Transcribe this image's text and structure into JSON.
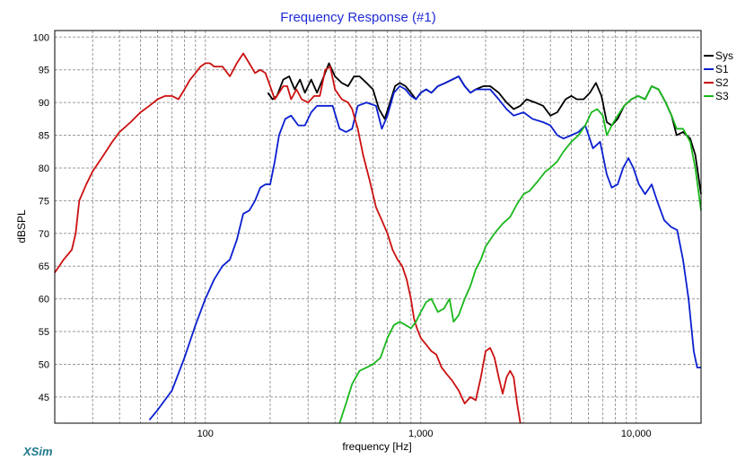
{
  "chart_data": {
    "type": "line",
    "title": "Frequency Response (#1)",
    "xlabel": "frequency [Hz]",
    "ylabel": "dBSPL",
    "xscale": "log",
    "xlim": [
      20,
      20000
    ],
    "ylim": [
      41,
      101
    ],
    "yticks": [
      45,
      50,
      55,
      60,
      65,
      70,
      75,
      80,
      85,
      90,
      95,
      100
    ],
    "xtick_labels": [
      {
        "value": 100,
        "label": "100"
      },
      {
        "value": 1000,
        "label": "1,000"
      },
      {
        "value": 10000,
        "label": "10,000"
      }
    ],
    "grid": true,
    "legend_position": "right",
    "series": [
      {
        "name": "Sys",
        "color": "#000000",
        "points": [
          [
            195,
            91.5
          ],
          [
            205,
            90.5
          ],
          [
            215,
            91
          ],
          [
            230,
            93.5
          ],
          [
            245,
            94
          ],
          [
            260,
            92
          ],
          [
            275,
            93.5
          ],
          [
            290,
            91.5
          ],
          [
            310,
            93.5
          ],
          [
            330,
            91.5
          ],
          [
            350,
            93.5
          ],
          [
            375,
            96
          ],
          [
            400,
            94
          ],
          [
            430,
            93
          ],
          [
            460,
            92.5
          ],
          [
            490,
            94
          ],
          [
            520,
            94
          ],
          [
            560,
            93
          ],
          [
            600,
            92
          ],
          [
            640,
            89
          ],
          [
            680,
            87.5
          ],
          [
            720,
            90
          ],
          [
            760,
            92.5
          ],
          [
            800,
            93
          ],
          [
            850,
            92.5
          ],
          [
            900,
            91.5
          ],
          [
            950,
            90.5
          ],
          [
            1000,
            91.5
          ],
          [
            1060,
            92
          ],
          [
            1120,
            91.5
          ],
          [
            1200,
            92.5
          ],
          [
            1300,
            93
          ],
          [
            1400,
            93.5
          ],
          [
            1500,
            94
          ],
          [
            1600,
            92.5
          ],
          [
            1700,
            91.5
          ],
          [
            1800,
            92
          ],
          [
            1950,
            92.5
          ],
          [
            2100,
            92.5
          ],
          [
            2300,
            91.5
          ],
          [
            2500,
            90
          ],
          [
            2700,
            89
          ],
          [
            2900,
            89.5
          ],
          [
            3100,
            90.5
          ],
          [
            3400,
            90
          ],
          [
            3700,
            89.5
          ],
          [
            4000,
            88
          ],
          [
            4300,
            88.5
          ],
          [
            4700,
            90.5
          ],
          [
            5000,
            91
          ],
          [
            5300,
            90.5
          ],
          [
            5700,
            90.5
          ],
          [
            6100,
            91.5
          ],
          [
            6500,
            93
          ],
          [
            6900,
            91
          ],
          [
            7300,
            87
          ],
          [
            7700,
            86.5
          ],
          [
            8200,
            87.5
          ],
          [
            8800,
            89.5
          ],
          [
            9500,
            90.5
          ],
          [
            10200,
            91
          ],
          [
            11000,
            90.5
          ],
          [
            11800,
            92.5
          ],
          [
            12700,
            92
          ],
          [
            13700,
            90
          ],
          [
            14600,
            88
          ],
          [
            15400,
            85
          ],
          [
            16500,
            85.5
          ],
          [
            17800,
            84.5
          ],
          [
            18800,
            82
          ],
          [
            20000,
            76
          ]
        ]
      },
      {
        "name": "S1",
        "color": "#0a1fd0",
        "points": [
          [
            55,
            41.5
          ],
          [
            60,
            43
          ],
          [
            70,
            46
          ],
          [
            80,
            51
          ],
          [
            90,
            56
          ],
          [
            100,
            60
          ],
          [
            110,
            63
          ],
          [
            120,
            65
          ],
          [
            130,
            66
          ],
          [
            140,
            69
          ],
          [
            150,
            73
          ],
          [
            160,
            73.5
          ],
          [
            170,
            75
          ],
          [
            180,
            77
          ],
          [
            190,
            77.5
          ],
          [
            200,
            77.5
          ],
          [
            210,
            81
          ],
          [
            220,
            85
          ],
          [
            235,
            87.5
          ],
          [
            250,
            88
          ],
          [
            270,
            86.5
          ],
          [
            290,
            86.5
          ],
          [
            310,
            88.5
          ],
          [
            330,
            89.5
          ],
          [
            360,
            89.5
          ],
          [
            390,
            89.5
          ],
          [
            420,
            86
          ],
          [
            450,
            85.5
          ],
          [
            480,
            86
          ],
          [
            510,
            89.5
          ],
          [
            560,
            90
          ],
          [
            620,
            89.5
          ],
          [
            660,
            86
          ],
          [
            700,
            88
          ],
          [
            750,
            91.5
          ],
          [
            800,
            92.5
          ],
          [
            850,
            92
          ],
          [
            900,
            91
          ],
          [
            950,
            90.5
          ],
          [
            1000,
            91.5
          ],
          [
            1060,
            92
          ],
          [
            1120,
            91.5
          ],
          [
            1200,
            92.5
          ],
          [
            1300,
            93
          ],
          [
            1400,
            93.5
          ],
          [
            1500,
            94
          ],
          [
            1600,
            92.5
          ],
          [
            1700,
            91.5
          ],
          [
            1800,
            92
          ],
          [
            1950,
            92
          ],
          [
            2100,
            92
          ],
          [
            2300,
            90.5
          ],
          [
            2500,
            89
          ],
          [
            2700,
            88
          ],
          [
            3000,
            88.5
          ],
          [
            3300,
            87.5
          ],
          [
            3700,
            87
          ],
          [
            4000,
            86.5
          ],
          [
            4300,
            85
          ],
          [
            4600,
            84.5
          ],
          [
            5000,
            85
          ],
          [
            5400,
            85.5
          ],
          [
            5800,
            86.5
          ],
          [
            6300,
            83
          ],
          [
            6800,
            84
          ],
          [
            7300,
            79
          ],
          [
            7700,
            77
          ],
          [
            8200,
            77.5
          ],
          [
            8700,
            80
          ],
          [
            9200,
            81.5
          ],
          [
            9700,
            80
          ],
          [
            10300,
            77.5
          ],
          [
            11000,
            76
          ],
          [
            11800,
            77.5
          ],
          [
            12500,
            75
          ],
          [
            13500,
            72
          ],
          [
            14500,
            71
          ],
          [
            15500,
            70.5
          ],
          [
            16500,
            66
          ],
          [
            17500,
            60
          ],
          [
            18500,
            52
          ],
          [
            19200,
            49.5
          ],
          [
            20000,
            49.5
          ]
        ]
      },
      {
        "name": "S2",
        "color": "#cc1010",
        "points": [
          [
            20,
            64
          ],
          [
            22,
            66
          ],
          [
            24,
            67.5
          ],
          [
            25,
            70
          ],
          [
            26,
            75
          ],
          [
            28,
            77.5
          ],
          [
            30,
            79.5
          ],
          [
            33,
            81.5
          ],
          [
            37,
            84
          ],
          [
            40,
            85.5
          ],
          [
            45,
            87
          ],
          [
            50,
            88.5
          ],
          [
            55,
            89.5
          ],
          [
            60,
            90.5
          ],
          [
            65,
            91
          ],
          [
            70,
            91
          ],
          [
            75,
            90.5
          ],
          [
            80,
            92
          ],
          [
            85,
            93.5
          ],
          [
            90,
            94.5
          ],
          [
            95,
            95.5
          ],
          [
            100,
            96
          ],
          [
            105,
            96
          ],
          [
            110,
            95.5
          ],
          [
            120,
            95.5
          ],
          [
            130,
            94
          ],
          [
            140,
            96
          ],
          [
            150,
            97.5
          ],
          [
            160,
            96
          ],
          [
            170,
            94.5
          ],
          [
            180,
            95
          ],
          [
            190,
            94.5
          ],
          [
            200,
            92.5
          ],
          [
            210,
            90.5
          ],
          [
            220,
            91.5
          ],
          [
            230,
            92.5
          ],
          [
            240,
            92.5
          ],
          [
            250,
            90.5
          ],
          [
            265,
            92
          ],
          [
            280,
            90.5
          ],
          [
            300,
            90
          ],
          [
            320,
            91
          ],
          [
            340,
            91
          ],
          [
            360,
            95
          ],
          [
            380,
            95.5
          ],
          [
            400,
            92
          ],
          [
            430,
            90.5
          ],
          [
            460,
            90
          ],
          [
            480,
            89
          ],
          [
            510,
            86
          ],
          [
            540,
            82
          ],
          [
            580,
            78
          ],
          [
            620,
            74
          ],
          [
            660,
            72
          ],
          [
            700,
            70
          ],
          [
            740,
            67.5
          ],
          [
            780,
            66
          ],
          [
            820,
            65
          ],
          [
            860,
            63
          ],
          [
            900,
            60
          ],
          [
            930,
            57
          ],
          [
            960,
            55.5
          ],
          [
            1000,
            54
          ],
          [
            1060,
            53
          ],
          [
            1120,
            52
          ],
          [
            1180,
            51.5
          ],
          [
            1250,
            49.5
          ],
          [
            1320,
            48.5
          ],
          [
            1400,
            47.5
          ],
          [
            1500,
            46
          ],
          [
            1600,
            44
          ],
          [
            1700,
            45
          ],
          [
            1800,
            44.5
          ],
          [
            1900,
            48
          ],
          [
            2000,
            52
          ],
          [
            2100,
            52.5
          ],
          [
            2200,
            51
          ],
          [
            2300,
            48
          ],
          [
            2400,
            45.5
          ],
          [
            2500,
            48
          ],
          [
            2600,
            49
          ],
          [
            2700,
            48
          ],
          [
            2800,
            44
          ],
          [
            2900,
            41
          ]
        ]
      },
      {
        "name": "S3",
        "color": "#19b81c",
        "points": [
          [
            420,
            41
          ],
          [
            450,
            44
          ],
          [
            480,
            47
          ],
          [
            520,
            49
          ],
          [
            560,
            49.5
          ],
          [
            600,
            50
          ],
          [
            650,
            51
          ],
          [
            700,
            54
          ],
          [
            750,
            56
          ],
          [
            800,
            56.5
          ],
          [
            850,
            56
          ],
          [
            900,
            55.5
          ],
          [
            950,
            56.5
          ],
          [
            1000,
            58
          ],
          [
            1060,
            59.5
          ],
          [
            1120,
            60
          ],
          [
            1200,
            58
          ],
          [
            1280,
            58.5
          ],
          [
            1360,
            60
          ],
          [
            1420,
            56.5
          ],
          [
            1500,
            57.5
          ],
          [
            1600,
            60
          ],
          [
            1700,
            62
          ],
          [
            1800,
            64.5
          ],
          [
            1900,
            66
          ],
          [
            2000,
            68
          ],
          [
            2200,
            70
          ],
          [
            2400,
            71.5
          ],
          [
            2600,
            72.5
          ],
          [
            2800,
            74.5
          ],
          [
            3000,
            76
          ],
          [
            3200,
            76.5
          ],
          [
            3500,
            78
          ],
          [
            3800,
            79.5
          ],
          [
            4000,
            80
          ],
          [
            4300,
            81
          ],
          [
            4600,
            82.5
          ],
          [
            5000,
            84
          ],
          [
            5400,
            85
          ],
          [
            5800,
            86.5
          ],
          [
            6200,
            88.5
          ],
          [
            6600,
            89
          ],
          [
            7000,
            88
          ],
          [
            7300,
            85
          ],
          [
            7700,
            86.5
          ],
          [
            8200,
            88
          ],
          [
            8800,
            89.5
          ],
          [
            9500,
            90.5
          ],
          [
            10200,
            91
          ],
          [
            11000,
            90.5
          ],
          [
            11800,
            92.5
          ],
          [
            12700,
            92
          ],
          [
            13700,
            90
          ],
          [
            14600,
            88
          ],
          [
            15400,
            86
          ],
          [
            16500,
            86
          ],
          [
            17800,
            84
          ],
          [
            18800,
            80
          ],
          [
            20000,
            73.5
          ]
        ]
      }
    ]
  },
  "branding": {
    "logo_text": "XSim"
  }
}
